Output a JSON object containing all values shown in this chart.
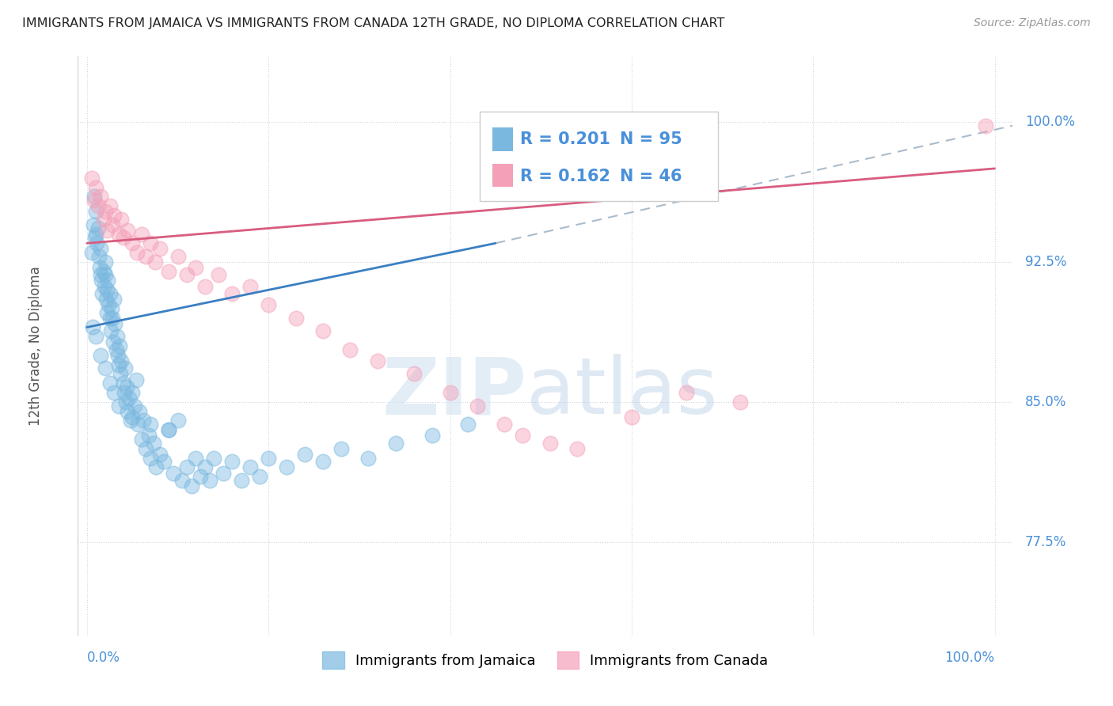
{
  "title": "IMMIGRANTS FROM JAMAICA VS IMMIGRANTS FROM CANADA 12TH GRADE, NO DIPLOMA CORRELATION CHART",
  "source": "Source: ZipAtlas.com",
  "ylabel": "12th Grade, No Diploma",
  "yticks": [
    0.775,
    0.85,
    0.925,
    1.0
  ],
  "ytick_labels": [
    "77.5%",
    "85.0%",
    "92.5%",
    "100.0%"
  ],
  "xlim": [
    -0.01,
    1.02
  ],
  "ylim": [
    0.725,
    1.035
  ],
  "legend_jamaica": "Immigrants from Jamaica",
  "legend_canada": "Immigrants from Canada",
  "R_jamaica": "0.201",
  "N_jamaica": "95",
  "R_canada": "0.162",
  "N_canada": "46",
  "blue_color": "#7ab8e0",
  "pink_color": "#f4a0b8",
  "blue_line_color": "#3a7fc1",
  "pink_line_color": "#d95c80",
  "dashed_line_color": "#aabccc",
  "axis_label_color": "#4a90d9",
  "jamaica_scatter_x": [
    0.005,
    0.007,
    0.008,
    0.009,
    0.01,
    0.01,
    0.011,
    0.012,
    0.013,
    0.014,
    0.015,
    0.015,
    0.016,
    0.017,
    0.018,
    0.019,
    0.02,
    0.02,
    0.021,
    0.022,
    0.022,
    0.023,
    0.024,
    0.025,
    0.025,
    0.026,
    0.027,
    0.028,
    0.029,
    0.03,
    0.031,
    0.032,
    0.033,
    0.034,
    0.035,
    0.036,
    0.037,
    0.038,
    0.04,
    0.041,
    0.042,
    0.043,
    0.044,
    0.045,
    0.046,
    0.048,
    0.05,
    0.052,
    0.054,
    0.056,
    0.058,
    0.06,
    0.062,
    0.065,
    0.068,
    0.07,
    0.073,
    0.076,
    0.08,
    0.085,
    0.09,
    0.095,
    0.1,
    0.105,
    0.11,
    0.115,
    0.12,
    0.125,
    0.13,
    0.135,
    0.14,
    0.15,
    0.16,
    0.17,
    0.18,
    0.19,
    0.2,
    0.22,
    0.24,
    0.26,
    0.28,
    0.31,
    0.34,
    0.38,
    0.42,
    0.006,
    0.01,
    0.015,
    0.02,
    0.025,
    0.03,
    0.035,
    0.05,
    0.07,
    0.09
  ],
  "jamaica_scatter_y": [
    0.93,
    0.945,
    0.96,
    0.938,
    0.952,
    0.94,
    0.935,
    0.943,
    0.928,
    0.922,
    0.918,
    0.932,
    0.915,
    0.908,
    0.92,
    0.912,
    0.925,
    0.918,
    0.905,
    0.91,
    0.898,
    0.915,
    0.902,
    0.895,
    0.908,
    0.888,
    0.9,
    0.895,
    0.882,
    0.905,
    0.892,
    0.878,
    0.885,
    0.875,
    0.87,
    0.88,
    0.865,
    0.872,
    0.86,
    0.855,
    0.868,
    0.85,
    0.858,
    0.845,
    0.852,
    0.84,
    0.855,
    0.848,
    0.862,
    0.838,
    0.845,
    0.83,
    0.84,
    0.825,
    0.832,
    0.82,
    0.828,
    0.815,
    0.822,
    0.818,
    0.835,
    0.812,
    0.84,
    0.808,
    0.815,
    0.805,
    0.82,
    0.81,
    0.815,
    0.808,
    0.82,
    0.812,
    0.818,
    0.808,
    0.815,
    0.81,
    0.82,
    0.815,
    0.822,
    0.818,
    0.825,
    0.82,
    0.828,
    0.832,
    0.838,
    0.89,
    0.885,
    0.875,
    0.868,
    0.86,
    0.855,
    0.848,
    0.842,
    0.838,
    0.835
  ],
  "canada_scatter_x": [
    0.005,
    0.008,
    0.01,
    0.012,
    0.015,
    0.018,
    0.02,
    0.022,
    0.025,
    0.028,
    0.03,
    0.035,
    0.038,
    0.04,
    0.045,
    0.05,
    0.055,
    0.06,
    0.065,
    0.07,
    0.075,
    0.08,
    0.09,
    0.1,
    0.11,
    0.12,
    0.13,
    0.145,
    0.16,
    0.18,
    0.2,
    0.23,
    0.26,
    0.29,
    0.32,
    0.36,
    0.4,
    0.43,
    0.46,
    0.48,
    0.51,
    0.54,
    0.6,
    0.66,
    0.72,
    0.99
  ],
  "canada_scatter_y": [
    0.97,
    0.958,
    0.965,
    0.955,
    0.96,
    0.948,
    0.952,
    0.942,
    0.955,
    0.945,
    0.95,
    0.94,
    0.948,
    0.938,
    0.942,
    0.935,
    0.93,
    0.94,
    0.928,
    0.935,
    0.925,
    0.932,
    0.92,
    0.928,
    0.918,
    0.922,
    0.912,
    0.918,
    0.908,
    0.912,
    0.902,
    0.895,
    0.888,
    0.878,
    0.872,
    0.865,
    0.855,
    0.848,
    0.838,
    0.832,
    0.828,
    0.825,
    0.842,
    0.855,
    0.85,
    0.998
  ],
  "blue_line_x0": 0.0,
  "blue_line_y0": 0.89,
  "blue_line_x1": 0.45,
  "blue_line_y1": 0.935,
  "pink_line_x0": 0.0,
  "pink_line_y0": 0.935,
  "pink_line_x1": 1.0,
  "pink_line_y1": 0.975,
  "dash_line_x0": 0.45,
  "dash_line_y0": 0.935,
  "dash_line_x1": 1.02,
  "dash_line_y1": 0.998
}
